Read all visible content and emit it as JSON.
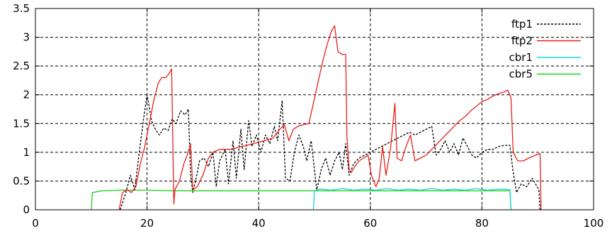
{
  "chart_data": {
    "type": "line",
    "title": "",
    "xlabel": "",
    "ylabel": "",
    "xlim": [
      0,
      100
    ],
    "ylim": [
      0,
      3.5
    ],
    "x_ticks": [
      0,
      20,
      40,
      60,
      80,
      100
    ],
    "y_ticks": [
      0,
      0.5,
      1,
      1.5,
      2,
      2.5,
      3,
      3.5
    ],
    "grid": true,
    "legend_position": "top-right",
    "series": [
      {
        "name": "ftp1",
        "color": "#000000",
        "dash": "3,2",
        "points": [
          [
            15.2,
            0
          ],
          [
            16.2,
            0.3
          ],
          [
            17.0,
            0.6
          ],
          [
            17.8,
            0.35
          ],
          [
            18.6,
            1.0
          ],
          [
            19.4,
            1.6
          ],
          [
            20.0,
            2.0
          ],
          [
            20.8,
            1.55
          ],
          [
            21.5,
            1.4
          ],
          [
            22.2,
            1.3
          ],
          [
            23.0,
            1.42
          ],
          [
            23.8,
            1.38
          ],
          [
            24.5,
            1.58
          ],
          [
            25.2,
            1.5
          ],
          [
            26.0,
            1.72
          ],
          [
            26.8,
            1.65
          ],
          [
            27.4,
            1.75
          ],
          [
            27.8,
            0.6
          ],
          [
            28.2,
            0.3
          ],
          [
            28.8,
            0.55
          ],
          [
            29.4,
            0.85
          ],
          [
            30.2,
            0.9
          ],
          [
            31.0,
            0.75
          ],
          [
            31.8,
            1.0
          ],
          [
            32.4,
            0.4
          ],
          [
            33.0,
            0.85
          ],
          [
            34.0,
            1.05
          ],
          [
            34.6,
            0.45
          ],
          [
            35.4,
            1.2
          ],
          [
            36.0,
            0.55
          ],
          [
            36.8,
            1.4
          ],
          [
            37.4,
            0.7
          ],
          [
            38.2,
            1.55
          ],
          [
            38.8,
            1.1
          ],
          [
            39.6,
            1.3
          ],
          [
            40.4,
            1.0
          ],
          [
            41.2,
            1.3
          ],
          [
            42.0,
            1.15
          ],
          [
            42.8,
            1.45
          ],
          [
            43.4,
            1.2
          ],
          [
            44.2,
            1.9
          ],
          [
            44.8,
            0.55
          ],
          [
            45.6,
            0.5
          ],
          [
            46.4,
            1.0
          ],
          [
            47.2,
            1.3
          ],
          [
            48.0,
            1.1
          ],
          [
            48.6,
            0.85
          ],
          [
            49.4,
            1.2
          ],
          [
            50.4,
            0.35
          ],
          [
            51.2,
            0.7
          ],
          [
            52.0,
            0.9
          ],
          [
            52.8,
            0.6
          ],
          [
            53.6,
            0.85
          ],
          [
            54.4,
            1.0
          ],
          [
            55.0,
            0.7
          ],
          [
            55.6,
            1.15
          ],
          [
            56.2,
            0.6
          ],
          [
            57.0,
            0.8
          ],
          [
            58.0,
            0.9
          ],
          [
            59.0,
            0.95
          ],
          [
            60.0,
            1.0
          ],
          [
            61.0,
            1.05
          ],
          [
            62.0,
            1.1
          ],
          [
            63.0,
            1.15
          ],
          [
            64.0,
            1.2
          ],
          [
            65.0,
            1.25
          ],
          [
            66.0,
            1.3
          ],
          [
            67.0,
            1.35
          ],
          [
            68.0,
            1.3
          ],
          [
            69.0,
            1.35
          ],
          [
            70.0,
            1.4
          ],
          [
            71.0,
            1.45
          ],
          [
            71.8,
            0.95
          ],
          [
            72.6,
            1.05
          ],
          [
            73.4,
            1.2
          ],
          [
            74.2,
            1.0
          ],
          [
            75.0,
            1.15
          ],
          [
            75.8,
            0.95
          ],
          [
            76.6,
            1.25
          ],
          [
            77.4,
            1.1
          ],
          [
            78.2,
            0.95
          ],
          [
            79.0,
            0.9
          ],
          [
            80.0,
            1.0
          ],
          [
            81.0,
            1.05
          ],
          [
            82.0,
            1.05
          ],
          [
            83.0,
            1.1
          ],
          [
            84.0,
            1.12
          ],
          [
            85.0,
            1.12
          ],
          [
            85.6,
            0.65
          ],
          [
            86.2,
            0.3
          ],
          [
            87.0,
            0.45
          ],
          [
            88.0,
            0.4
          ],
          [
            89.0,
            0.55
          ],
          [
            89.6,
            0.45
          ],
          [
            90.2,
            0.35
          ],
          [
            90.4,
            0
          ]
        ]
      },
      {
        "name": "ftp2",
        "color": "#e8201c",
        "dash": "",
        "points": [
          [
            15.0,
            0
          ],
          [
            15.6,
            0.3
          ],
          [
            16.4,
            0.35
          ],
          [
            17.2,
            0.3
          ],
          [
            18.0,
            0.4
          ],
          [
            18.8,
            0.8
          ],
          [
            19.6,
            1.1
          ],
          [
            20.4,
            1.5
          ],
          [
            21.2,
            1.9
          ],
          [
            22.0,
            2.2
          ],
          [
            22.6,
            2.3
          ],
          [
            23.4,
            2.3
          ],
          [
            24.0,
            2.38
          ],
          [
            24.4,
            2.45
          ],
          [
            24.8,
            0.1
          ],
          [
            25.0,
            0.35
          ],
          [
            25.8,
            0.5
          ],
          [
            26.6,
            0.8
          ],
          [
            27.2,
            0.95
          ],
          [
            27.8,
            1.15
          ],
          [
            28.2,
            0.35
          ],
          [
            29.0,
            0.4
          ],
          [
            30.0,
            0.6
          ],
          [
            31.0,
            0.9
          ],
          [
            31.8,
            1.0
          ],
          [
            33.0,
            1.05
          ],
          [
            35.0,
            1.05
          ],
          [
            37.0,
            1.1
          ],
          [
            39.0,
            1.15
          ],
          [
            41.0,
            1.2
          ],
          [
            42.6,
            1.25
          ],
          [
            43.8,
            1.4
          ],
          [
            44.6,
            1.48
          ],
          [
            45.4,
            1.2
          ],
          [
            46.2,
            1.4
          ],
          [
            47.0,
            1.45
          ],
          [
            48.0,
            1.48
          ],
          [
            49.0,
            1.5
          ],
          [
            49.8,
            1.85
          ],
          [
            50.6,
            2.2
          ],
          [
            51.4,
            2.55
          ],
          [
            52.2,
            2.85
          ],
          [
            53.0,
            3.1
          ],
          [
            53.6,
            3.2
          ],
          [
            54.2,
            2.75
          ],
          [
            55.0,
            2.7
          ],
          [
            55.6,
            2.7
          ],
          [
            55.8,
            1.3
          ],
          [
            56.2,
            0.7
          ],
          [
            56.6,
            0.65
          ],
          [
            57.2,
            0.75
          ],
          [
            58.0,
            0.85
          ],
          [
            58.8,
            0.9
          ],
          [
            59.6,
            0.95
          ],
          [
            60.2,
            0.6
          ],
          [
            61.0,
            0.4
          ],
          [
            61.6,
            0.55
          ],
          [
            62.2,
            1.1
          ],
          [
            62.8,
            0.6
          ],
          [
            63.6,
            1.05
          ],
          [
            64.4,
            1.85
          ],
          [
            64.8,
            0.9
          ],
          [
            65.6,
            0.85
          ],
          [
            66.4,
            1.1
          ],
          [
            67.2,
            1.3
          ],
          [
            68.0,
            0.85
          ],
          [
            69.0,
            0.9
          ],
          [
            70.0,
            0.95
          ],
          [
            71.0,
            1.05
          ],
          [
            72.0,
            1.15
          ],
          [
            73.0,
            1.25
          ],
          [
            74.0,
            1.35
          ],
          [
            75.0,
            1.45
          ],
          [
            76.0,
            1.55
          ],
          [
            77.0,
            1.62
          ],
          [
            78.0,
            1.72
          ],
          [
            79.0,
            1.8
          ],
          [
            80.0,
            1.88
          ],
          [
            81.0,
            1.92
          ],
          [
            82.0,
            1.98
          ],
          [
            83.0,
            2.02
          ],
          [
            84.0,
            2.05
          ],
          [
            84.6,
            2.08
          ],
          [
            85.2,
            1.95
          ],
          [
            85.6,
            1.0
          ],
          [
            86.4,
            0.85
          ],
          [
            87.4,
            0.85
          ],
          [
            88.4,
            0.9
          ],
          [
            89.6,
            0.95
          ],
          [
            90.4,
            0.98
          ],
          [
            90.6,
            0
          ]
        ]
      },
      {
        "name": "cbr1",
        "color": "#17d4d8",
        "dash": "",
        "points": [
          [
            49.8,
            0
          ],
          [
            50.0,
            0.33
          ],
          [
            51.0,
            0.36
          ],
          [
            53.0,
            0.34
          ],
          [
            55.0,
            0.37
          ],
          [
            57.0,
            0.34
          ],
          [
            59.0,
            0.36
          ],
          [
            61.0,
            0.34
          ],
          [
            63.0,
            0.37
          ],
          [
            65.0,
            0.34
          ],
          [
            67.0,
            0.36
          ],
          [
            69.0,
            0.34
          ],
          [
            71.0,
            0.37
          ],
          [
            73.0,
            0.34
          ],
          [
            75.0,
            0.36
          ],
          [
            77.0,
            0.34
          ],
          [
            79.0,
            0.37
          ],
          [
            81.0,
            0.34
          ],
          [
            83.0,
            0.36
          ],
          [
            85.0,
            0.35
          ],
          [
            85.2,
            0
          ]
        ]
      },
      {
        "name": "cbr5",
        "color": "#1ed41e",
        "dash": "",
        "points": [
          [
            10.0,
            0
          ],
          [
            10.2,
            0.3
          ],
          [
            12.0,
            0.33
          ],
          [
            15.0,
            0.34
          ],
          [
            20.0,
            0.34
          ],
          [
            25.0,
            0.33
          ],
          [
            30.0,
            0.33
          ],
          [
            35.0,
            0.33
          ],
          [
            40.0,
            0.33
          ],
          [
            45.0,
            0.33
          ],
          [
            50.0,
            0.33
          ],
          [
            55.0,
            0.33
          ],
          [
            60.0,
            0.33
          ],
          [
            65.0,
            0.33
          ],
          [
            70.0,
            0.33
          ],
          [
            75.0,
            0.33
          ],
          [
            80.0,
            0.33
          ],
          [
            85.0,
            0.33
          ],
          [
            85.2,
            0
          ]
        ]
      }
    ]
  }
}
